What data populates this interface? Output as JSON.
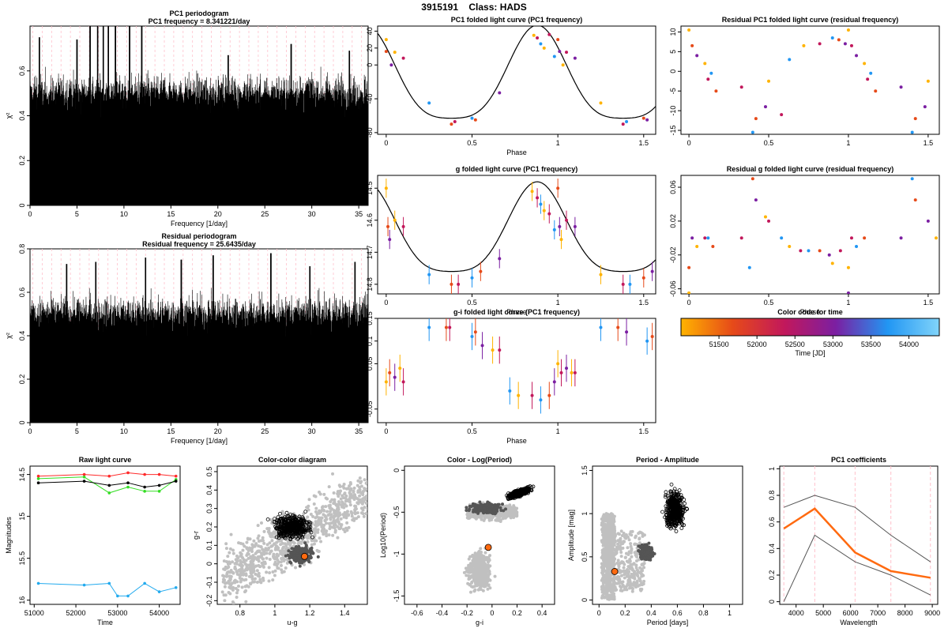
{
  "header": {
    "star_id": "3915191",
    "class_label": "Class: HADS"
  },
  "colors": {
    "text": "#000000",
    "grid_dashed": "#ffc0cb",
    "orange": "#ff6a10",
    "gray_points": "#c0c0c0",
    "dark_points": "#555555",
    "raw_red": "#ff2a2a",
    "raw_green": "#33dd22",
    "raw_black": "#000000",
    "raw_blue": "#22aaee"
  },
  "chart_data": [
    {
      "id": "pc1-periodogram",
      "type": "line",
      "title": "PC1 periodogram",
      "subtitle": "PC1 frequency = 8.341221/day",
      "xlabel": "Frequency [1/day]",
      "ylabel": "χ²",
      "xlim": [
        0,
        36
      ],
      "ylim": [
        0,
        0.8
      ],
      "xticks": [
        0,
        5,
        10,
        15,
        20,
        25,
        30,
        35
      ],
      "yticks": [
        0.0,
        0.2,
        0.4,
        0.6
      ],
      "peaks": [
        {
          "x": 7.2,
          "y": 0.93
        },
        {
          "x": 8.34,
          "y": 0.95
        },
        {
          "x": 9.1,
          "y": 0.94
        },
        {
          "x": 10.6,
          "y": 0.92
        },
        {
          "x": 11.9,
          "y": 0.82
        },
        {
          "x": 7.8,
          "y": 0.82
        },
        {
          "x": 6.4,
          "y": 0.83
        },
        {
          "x": 5.0,
          "y": 0.74
        },
        {
          "x": 1.0,
          "y": 0.75
        },
        {
          "x": 27.8,
          "y": 0.72
        },
        {
          "x": 34.0,
          "y": 0.69
        },
        {
          "x": 21.1,
          "y": 0.67
        }
      ],
      "baseline_mean": 0.5,
      "grid_dashed": true
    },
    {
      "id": "residual-periodogram",
      "type": "line",
      "title": "Residual periodogram",
      "subtitle": "Residual frequency = 25.6435/day",
      "xlabel": "Frequency [1/day]",
      "ylabel": "χ²",
      "xlim": [
        0,
        36
      ],
      "ylim": [
        0,
        0.8
      ],
      "xticks": [
        0,
        5,
        10,
        15,
        20,
        25,
        30,
        35
      ],
      "yticks": [
        0.0,
        0.2,
        0.4,
        0.6,
        0.8
      ],
      "peaks": [
        {
          "x": 25.64,
          "y": 0.78
        },
        {
          "x": 12.3,
          "y": 0.76
        },
        {
          "x": 19.5,
          "y": 0.77
        },
        {
          "x": 7.0,
          "y": 0.74
        },
        {
          "x": 3.9,
          "y": 0.73
        },
        {
          "x": 34.6,
          "y": 0.74
        },
        {
          "x": 16.1,
          "y": 0.75
        },
        {
          "x": 29.8,
          "y": 0.72
        }
      ],
      "baseline_mean": 0.5,
      "grid_dashed": true
    },
    {
      "id": "pc1-folded",
      "type": "scatter",
      "title": "PC1 folded light curve (PC1 frequency)",
      "xlabel": "Phase",
      "ylabel": "",
      "xlim": [
        -0.05,
        1.57
      ],
      "ylim": [
        -82,
        46
      ],
      "xticks": [
        0.0,
        0.5,
        1.0,
        1.5
      ],
      "yticks": [
        40,
        20,
        0,
        -40,
        -80
      ],
      "points": [
        [
          0.0,
          30
        ],
        [
          0.0,
          16
        ],
        [
          0.03,
          0
        ],
        [
          0.05,
          15
        ],
        [
          0.1,
          8
        ],
        [
          0.25,
          -45
        ],
        [
          0.38,
          -70
        ],
        [
          0.4,
          -67
        ],
        [
          0.5,
          -63
        ],
        [
          0.52,
          -65
        ],
        [
          0.66,
          -33
        ],
        [
          0.86,
          35
        ],
        [
          0.88,
          32
        ],
        [
          0.9,
          25
        ],
        [
          0.92,
          20
        ],
        [
          0.95,
          36
        ],
        [
          0.98,
          10
        ],
        [
          1.0,
          30
        ],
        [
          1.01,
          16
        ],
        [
          1.03,
          0
        ],
        [
          1.05,
          15
        ],
        [
          1.1,
          8
        ],
        [
          1.25,
          -45
        ],
        [
          1.38,
          -70
        ],
        [
          1.4,
          -67
        ],
        [
          1.5,
          -63
        ],
        [
          1.52,
          -65
        ]
      ],
      "model": "fourier",
      "grid_dashed": false
    },
    {
      "id": "residual-pc1-folded",
      "type": "scatter",
      "title": "Residual PC1 folded light curve (residual frequency)",
      "xlabel": "",
      "ylabel": "",
      "xlim": [
        -0.05,
        1.57
      ],
      "ylim": [
        -16,
        11.5
      ],
      "xticks": [
        0.0,
        0.5,
        1.0,
        1.5
      ],
      "yticks": [
        10,
        5,
        0,
        -5,
        -10,
        -15
      ],
      "points": [
        [
          0.0,
          10.5
        ],
        [
          0.02,
          6.5
        ],
        [
          0.05,
          4
        ],
        [
          0.1,
          2
        ],
        [
          0.12,
          -2
        ],
        [
          0.14,
          -0.5
        ],
        [
          0.17,
          -5
        ],
        [
          0.33,
          -4
        ],
        [
          0.4,
          -15.5
        ],
        [
          0.42,
          -12
        ],
        [
          0.48,
          -9
        ],
        [
          0.5,
          -2.5
        ],
        [
          0.58,
          -11
        ],
        [
          0.63,
          3
        ],
        [
          0.72,
          6.5
        ],
        [
          0.82,
          7
        ],
        [
          0.9,
          8.5
        ],
        [
          0.94,
          8
        ],
        [
          0.98,
          7
        ],
        [
          1.0,
          10.5
        ],
        [
          1.02,
          6.5
        ],
        [
          1.05,
          4
        ],
        [
          1.1,
          2
        ],
        [
          1.12,
          -2
        ],
        [
          1.14,
          -0.5
        ],
        [
          1.17,
          -5
        ],
        [
          1.33,
          -4
        ],
        [
          1.4,
          -15.5
        ],
        [
          1.42,
          -12
        ],
        [
          1.48,
          -9
        ],
        [
          1.5,
          -2.5
        ]
      ],
      "grid_dashed": false
    },
    {
      "id": "g-folded",
      "type": "scatter",
      "title": "g folded light curve (PC1 frequency)",
      "xlabel": "Phase",
      "ylabel": "",
      "xlim": [
        -0.05,
        1.57
      ],
      "ylim": [
        14.83,
        14.46
      ],
      "xticks": [
        0.0,
        0.5,
        1.0,
        1.5
      ],
      "yticks": [
        14.5,
        14.6,
        14.7,
        14.8
      ],
      "points": [
        [
          0.0,
          14.5
        ],
        [
          0.01,
          14.62
        ],
        [
          0.02,
          14.66
        ],
        [
          0.05,
          14.6
        ],
        [
          0.1,
          14.62
        ],
        [
          0.25,
          14.77
        ],
        [
          0.38,
          14.8
        ],
        [
          0.42,
          14.8
        ],
        [
          0.5,
          14.78
        ],
        [
          0.55,
          14.76
        ],
        [
          0.66,
          14.72
        ],
        [
          0.85,
          14.51
        ],
        [
          0.88,
          14.53
        ],
        [
          0.9,
          14.55
        ],
        [
          0.92,
          14.57
        ],
        [
          0.95,
          14.58
        ],
        [
          0.98,
          14.63
        ],
        [
          1.0,
          14.5
        ],
        [
          1.01,
          14.62
        ],
        [
          1.02,
          14.66
        ],
        [
          1.05,
          14.6
        ],
        [
          1.1,
          14.62
        ],
        [
          1.25,
          14.77
        ],
        [
          1.38,
          14.8
        ],
        [
          1.42,
          14.8
        ],
        [
          1.5,
          14.78
        ],
        [
          1.55,
          14.76
        ]
      ],
      "model": "fourier",
      "grid_dashed": false
    },
    {
      "id": "residual-g-folded",
      "type": "scatter",
      "title": "Residual g folded light curve (residual frequency)",
      "xlabel": "Phase",
      "ylabel": "",
      "xlim": [
        -0.05,
        1.57
      ],
      "ylim": [
        -0.066,
        0.074
      ],
      "xticks": [
        0.0,
        0.5,
        1.0,
        1.5
      ],
      "yticks": [
        0.06,
        0.02,
        -0.02,
        -0.06
      ],
      "points": [
        [
          0.0,
          -0.065
        ],
        [
          0.0,
          -0.035
        ],
        [
          0.02,
          0.0
        ],
        [
          0.05,
          -0.01
        ],
        [
          0.1,
          0.0
        ],
        [
          0.12,
          0.0
        ],
        [
          0.15,
          -0.01
        ],
        [
          0.33,
          0.0
        ],
        [
          0.38,
          -0.035
        ],
        [
          0.4,
          0.07
        ],
        [
          0.42,
          0.045
        ],
        [
          0.48,
          0.025
        ],
        [
          0.5,
          0.02
        ],
        [
          0.58,
          0.0
        ],
        [
          0.63,
          -0.01
        ],
        [
          0.7,
          -0.015
        ],
        [
          0.75,
          -0.015
        ],
        [
          0.82,
          -0.015
        ],
        [
          0.88,
          -0.02
        ],
        [
          0.9,
          -0.03
        ],
        [
          0.95,
          -0.015
        ],
        [
          1.0,
          -0.065
        ],
        [
          1.0,
          -0.035
        ],
        [
          1.02,
          0.0
        ],
        [
          1.05,
          -0.01
        ],
        [
          1.1,
          0.0
        ],
        [
          1.33,
          0.0
        ],
        [
          1.4,
          0.07
        ],
        [
          1.42,
          0.045
        ],
        [
          1.5,
          0.02
        ],
        [
          1.55,
          0.0
        ]
      ],
      "grid_dashed": false
    },
    {
      "id": "gi-folded",
      "type": "scatter",
      "title": "g-i folded light curve (PC1 frequency)",
      "xlabel": "Phase",
      "ylabel": "",
      "xlim": [
        -0.05,
        1.57
      ],
      "ylim": [
        -0.08,
        0.15
      ],
      "xticks": [
        0.0,
        0.5,
        1.0,
        1.5
      ],
      "yticks": [
        0.15,
        0.1,
        0.05,
        -0.05
      ],
      "points": [
        [
          0.0,
          0.01
        ],
        [
          0.02,
          0.03
        ],
        [
          0.05,
          0.02
        ],
        [
          0.08,
          0.04
        ],
        [
          0.1,
          0.01
        ],
        [
          0.25,
          0.13
        ],
        [
          0.35,
          0.13
        ],
        [
          0.37,
          0.13
        ],
        [
          0.5,
          0.11
        ],
        [
          0.52,
          0.12
        ],
        [
          0.56,
          0.09
        ],
        [
          0.62,
          0.08
        ],
        [
          0.66,
          0.08
        ],
        [
          0.72,
          -0.01
        ],
        [
          0.77,
          -0.02
        ],
        [
          0.85,
          -0.02
        ],
        [
          0.9,
          -0.03
        ],
        [
          0.95,
          -0.02
        ],
        [
          0.98,
          0.01
        ],
        [
          1.0,
          0.05
        ],
        [
          1.02,
          0.03
        ],
        [
          1.05,
          0.04
        ],
        [
          1.08,
          0.03
        ],
        [
          1.1,
          0.03
        ],
        [
          1.25,
          0.13
        ],
        [
          1.35,
          0.13
        ],
        [
          1.4,
          0.12
        ],
        [
          1.52,
          0.1
        ],
        [
          1.55,
          0.11
        ]
      ],
      "grid_dashed": false
    },
    {
      "id": "color-code-time",
      "type": "heatmap",
      "title": "Color code for time",
      "xlabel": "Time [JD]",
      "xlim": [
        51000,
        54400
      ],
      "xticks": [
        51500,
        52000,
        52500,
        53000,
        53500,
        54000
      ],
      "stops": [
        "#ffb300",
        "#e64a19",
        "#c2185b",
        "#7b1fa2",
        "#2196f3",
        "#81d4fa"
      ]
    },
    {
      "id": "raw-light-curve",
      "type": "line",
      "title": "Raw light curve",
      "xlabel": "Time",
      "ylabel": "Magnitudes",
      "xlim": [
        50900,
        54500
      ],
      "ylim": [
        16.05,
        14.4
      ],
      "xticks": [
        51000,
        52000,
        53000,
        54000
      ],
      "yticks": [
        14.5,
        15.0,
        15.5,
        16.0
      ],
      "series": [
        {
          "name": "",
          "color": "#ff2a2a",
          "values": [
            [
              51100,
              14.52
            ],
            [
              52200,
              14.5
            ],
            [
              52800,
              14.52
            ],
            [
              53250,
              14.48
            ],
            [
              53650,
              14.5
            ],
            [
              54000,
              14.5
            ],
            [
              54400,
              14.52
            ]
          ]
        },
        {
          "name": "",
          "color": "#33dd22",
          "values": [
            [
              51100,
              14.55
            ],
            [
              52200,
              14.53
            ],
            [
              52800,
              14.72
            ],
            [
              53250,
              14.65
            ],
            [
              53650,
              14.7
            ],
            [
              54000,
              14.7
            ],
            [
              54400,
              14.56
            ]
          ]
        },
        {
          "name": "",
          "color": "#000000",
          "values": [
            [
              51100,
              14.6
            ],
            [
              52200,
              14.58
            ],
            [
              52800,
              14.63
            ],
            [
              53250,
              14.6
            ],
            [
              53650,
              14.65
            ],
            [
              54000,
              14.63
            ],
            [
              54400,
              14.58
            ]
          ]
        },
        {
          "name": "",
          "color": "#22aaee",
          "values": [
            [
              51100,
              15.8
            ],
            [
              52200,
              15.82
            ],
            [
              52800,
              15.8
            ],
            [
              53000,
              15.95
            ],
            [
              53250,
              15.95
            ],
            [
              53650,
              15.8
            ],
            [
              54000,
              15.9
            ],
            [
              54400,
              15.85
            ]
          ]
        }
      ]
    },
    {
      "id": "color-color",
      "type": "scatter",
      "title": "Color-color diagram",
      "xlabel": "u-g",
      "ylabel": "g-r",
      "xlim": [
        0.67,
        1.53
      ],
      "ylim": [
        -0.22,
        0.53
      ],
      "xticks": [
        0.8,
        1.0,
        1.2,
        1.4
      ],
      "yticks": [
        -0.2,
        -0.1,
        0.0,
        0.1,
        0.2,
        0.3,
        0.4,
        0.5
      ],
      "highlight": {
        "x": 1.17,
        "y": 0.04,
        "color": "#ff6a10"
      }
    },
    {
      "id": "color-logperiod",
      "type": "scatter",
      "title": "Color - Log(Period)",
      "xlabel": "g-i",
      "ylabel": "Log10(Period)",
      "xlim": [
        -0.7,
        0.5
      ],
      "ylim": [
        -1.6,
        0.05
      ],
      "xticks": [
        -0.6,
        -0.4,
        -0.2,
        0.0,
        0.2,
        0.4
      ],
      "yticks": [
        0.0,
        -0.5,
        -1.0,
        -1.5
      ],
      "highlight": {
        "x": -0.03,
        "y": -0.92,
        "color": "#ff6a10"
      }
    },
    {
      "id": "period-amplitude",
      "type": "scatter",
      "title": "Period - Amplitude",
      "xlabel": "Period [days]",
      "ylabel": "Amplitude [mag]",
      "xlim": [
        -0.05,
        1.1
      ],
      "ylim": [
        -0.05,
        1.55
      ],
      "xticks": [
        0.0,
        0.2,
        0.4,
        0.6,
        0.8,
        1.0
      ],
      "yticks": [
        0.0,
        0.5,
        1.0,
        1.5
      ],
      "highlight": {
        "x": 0.12,
        "y": 0.33,
        "color": "#ff6a10"
      }
    },
    {
      "id": "pc1-coefficients",
      "type": "line",
      "title": "PC1 coefficients",
      "xlabel": "Wavelength",
      "ylabel": "",
      "xlim": [
        3400,
        9200
      ],
      "ylim": [
        -0.02,
        1.02
      ],
      "xticks": [
        4000,
        5000,
        6000,
        7000,
        8000,
        9000
      ],
      "yticks": [
        0.0,
        0.2,
        0.4,
        0.6,
        0.8,
        1.0
      ],
      "vlines": [
        3550,
        4686,
        6166,
        7480,
        8932
      ],
      "series": [
        {
          "name": "",
          "color": "#ff6a10",
          "values": [
            [
              3551,
              0.55
            ],
            [
              4686,
              0.7
            ],
            [
              6166,
              0.37
            ],
            [
              7480,
              0.23
            ],
            [
              8932,
              0.18
            ]
          ]
        },
        {
          "name": "",
          "color": "#555555",
          "values": [
            [
              3551,
              0.71
            ],
            [
              4686,
              0.8
            ],
            [
              6166,
              0.71
            ],
            [
              7480,
              0.5
            ],
            [
              8932,
              0.3
            ]
          ]
        },
        {
          "name": "",
          "color": "#555555",
          "values": [
            [
              3551,
              0.0
            ],
            [
              4686,
              0.5
            ],
            [
              6166,
              0.3
            ],
            [
              7480,
              0.2
            ],
            [
              8932,
              0.05
            ]
          ]
        }
      ]
    }
  ]
}
